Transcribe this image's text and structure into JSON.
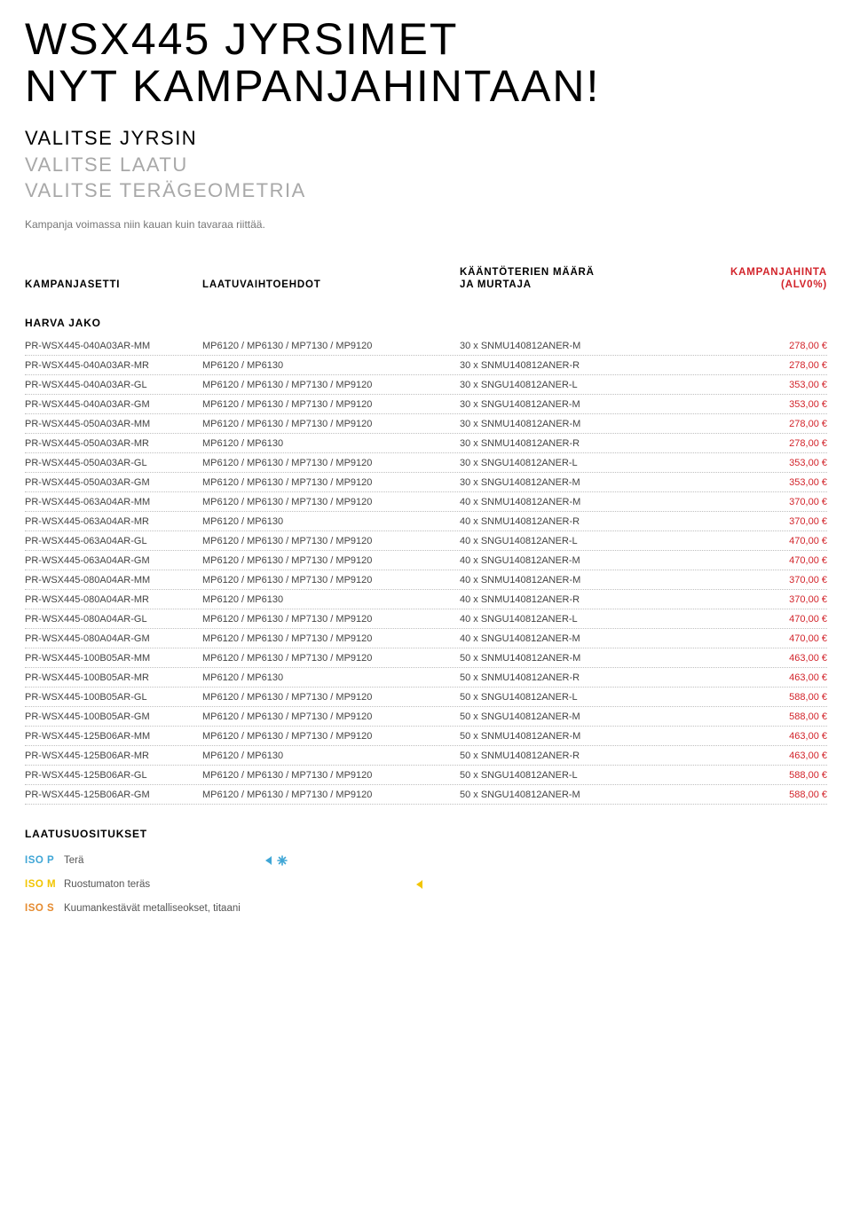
{
  "title_line1": "WSX445 JYRSIMET",
  "title_line2": "NYT KAMPANJAHINTAAN!",
  "subtitle": {
    "line1": "VALITSE JYRSIN",
    "line2": "VALITSE LAATU",
    "line3": "VALITSE TERÄGEOMETRIA"
  },
  "campaign_note": "Kampanja voimassa niin kauan kuin tavaraa riittää.",
  "headers": {
    "c1": "KAMPANJASETTI",
    "c2": "LAATUVAIHTOEHDOT",
    "c3_l1": "KÄÄNTÖTERIEN MÄÄRÄ",
    "c3_l2": "JA MURTAJA",
    "c4_l1": "KAMPANJAHINTA",
    "c4_l2": "(ALV0%)"
  },
  "section_label": "HARVA JAKO",
  "rows": [
    {
      "c1": "PR-WSX445-040A03AR-MM",
      "c2": "MP6120 / MP6130 / MP7130 / MP9120",
      "c3": "30 x SNMU140812ANER-M",
      "c4": "278,00 €"
    },
    {
      "c1": "PR-WSX445-040A03AR-MR",
      "c2": "MP6120 / MP6130",
      "c3": "30 x SNMU140812ANER-R",
      "c4": "278,00 €"
    },
    {
      "c1": "PR-WSX445-040A03AR-GL",
      "c2": "MP6120 / MP6130 / MP7130 / MP9120",
      "c3": "30 x SNGU140812ANER-L",
      "c4": "353,00 €"
    },
    {
      "c1": "PR-WSX445-040A03AR-GM",
      "c2": "MP6120 / MP6130 / MP7130 / MP9120",
      "c3": "30 x SNGU140812ANER-M",
      "c4": "353,00 €"
    },
    {
      "c1": "PR-WSX445-050A03AR-MM",
      "c2": "MP6120 / MP6130 / MP7130 / MP9120",
      "c3": "30 x SNMU140812ANER-M",
      "c4": "278,00 €"
    },
    {
      "c1": "PR-WSX445-050A03AR-MR",
      "c2": "MP6120 / MP6130",
      "c3": "30 x SNMU140812ANER-R",
      "c4": "278,00 €"
    },
    {
      "c1": "PR-WSX445-050A03AR-GL",
      "c2": "MP6120 / MP6130 / MP7130 / MP9120",
      "c3": "30 x SNGU140812ANER-L",
      "c4": "353,00 €"
    },
    {
      "c1": "PR-WSX445-050A03AR-GM",
      "c2": "MP6120 / MP6130 / MP7130 / MP9120",
      "c3": "30 x SNGU140812ANER-M",
      "c4": "353,00 €"
    },
    {
      "c1": "PR-WSX445-063A04AR-MM",
      "c2": "MP6120 / MP6130 / MP7130 / MP9120",
      "c3": "40 x SNMU140812ANER-M",
      "c4": "370,00 €"
    },
    {
      "c1": "PR-WSX445-063A04AR-MR",
      "c2": "MP6120 / MP6130",
      "c3": "40 x SNMU140812ANER-R",
      "c4": "370,00 €"
    },
    {
      "c1": "PR-WSX445-063A04AR-GL",
      "c2": "MP6120 / MP6130 / MP7130 / MP9120",
      "c3": "40 x SNGU140812ANER-L",
      "c4": "470,00 €"
    },
    {
      "c1": "PR-WSX445-063A04AR-GM",
      "c2": "MP6120 / MP6130 / MP7130 / MP9120",
      "c3": "40 x SNGU140812ANER-M",
      "c4": "470,00 €"
    },
    {
      "c1": "PR-WSX445-080A04AR-MM",
      "c2": "MP6120 / MP6130 / MP7130 / MP9120",
      "c3": "40 x SNMU140812ANER-M",
      "c4": "370,00 €"
    },
    {
      "c1": "PR-WSX445-080A04AR-MR",
      "c2": "MP6120 / MP6130",
      "c3": "40 x SNMU140812ANER-R",
      "c4": "370,00 €"
    },
    {
      "c1": "PR-WSX445-080A04AR-GL",
      "c2": "MP6120 / MP6130 / MP7130 / MP9120",
      "c3": "40 x SNGU140812ANER-L",
      "c4": "470,00 €"
    },
    {
      "c1": "PR-WSX445-080A04AR-GM",
      "c2": "MP6120 / MP6130 / MP7130 / MP9120",
      "c3": "40 x SNGU140812ANER-M",
      "c4": "470,00 €"
    },
    {
      "c1": "PR-WSX445-100B05AR-MM",
      "c2": "MP6120 / MP6130 / MP7130 / MP9120",
      "c3": "50 x SNMU140812ANER-M",
      "c4": "463,00 €"
    },
    {
      "c1": "PR-WSX445-100B05AR-MR",
      "c2": "MP6120 / MP6130",
      "c3": "50 x SNMU140812ANER-R",
      "c4": "463,00 €"
    },
    {
      "c1": "PR-WSX445-100B05AR-GL",
      "c2": "MP6120 / MP6130 / MP7130 / MP9120",
      "c3": "50 x SNGU140812ANER-L",
      "c4": "588,00 €"
    },
    {
      "c1": "PR-WSX445-100B05AR-GM",
      "c2": "MP6120 / MP6130 / MP7130 / MP9120",
      "c3": "50 x SNGU140812ANER-M",
      "c4": "588,00 €"
    },
    {
      "c1": "PR-WSX445-125B06AR-MM",
      "c2": "MP6120 / MP6130 / MP7130 / MP9120",
      "c3": "50 x SNMU140812ANER-M",
      "c4": "463,00 €"
    },
    {
      "c1": "PR-WSX445-125B06AR-MR",
      "c2": "MP6120 / MP6130",
      "c3": "50 x SNMU140812ANER-R",
      "c4": "463,00 €"
    },
    {
      "c1": "PR-WSX445-125B06AR-GL",
      "c2": "MP6120 / MP6130 / MP7130 / MP9120",
      "c3": "50 x SNGU140812ANER-L",
      "c4": "588,00 €"
    },
    {
      "c1": "PR-WSX445-125B06AR-GM",
      "c2": "MP6120 / MP6130 / MP7130 / MP9120",
      "c3": "50 x SNGU140812ANER-M",
      "c4": "588,00 €"
    }
  ],
  "recs": {
    "title": "LAATUSUOSITUKSET",
    "items": [
      {
        "code": "ISO P",
        "label": "Terä",
        "color": "#3fa6d6",
        "icons": [
          "pac",
          "snow"
        ]
      },
      {
        "code": "ISO M",
        "label": "Ruostumaton teräs",
        "color": "#f2c500",
        "icons": [
          "pac"
        ]
      },
      {
        "code": "ISO S",
        "label": "Kuumankestävät metalliseokset, titaani",
        "color": "#e58a2e",
        "icons": []
      }
    ]
  },
  "colors": {
    "accent_red": "#d2232a",
    "text_grey": "#444444",
    "light_grey": "#a8a8a8",
    "dot_border": "#bfbfbf"
  }
}
